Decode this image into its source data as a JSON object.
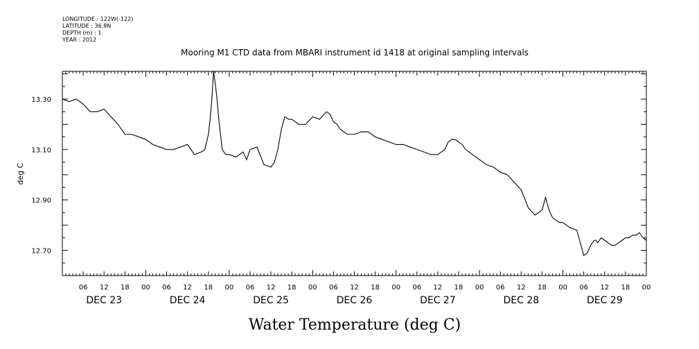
{
  "metadata": [
    "LONGITUDE : 122W(-122)",
    "LATITUDE : 36.8N",
    "DEPTH (m) : 1",
    "YEAR : 2012"
  ],
  "chart_data": {
    "type": "line",
    "title": "Mooring M1 CTD data from MBARI instrument id 1418 at original sampling intervals",
    "xlabel": "Water Temperature (deg C)",
    "ylabel": "deg C",
    "xlim": [
      0,
      168
    ],
    "ylim": [
      12.6,
      13.41
    ],
    "y_ticks": [
      "13.30",
      "13.10",
      "12.90",
      "12.70"
    ],
    "y_tick_values": [
      13.3,
      13.1,
      12.9,
      12.7
    ],
    "hour_tick_labels": [
      "06",
      "12",
      "18",
      "00",
      "06",
      "12",
      "18",
      "00",
      "06",
      "12",
      "18",
      "00",
      "06",
      "12",
      "18",
      "00",
      "06",
      "12",
      "18",
      "00",
      "06",
      "12",
      "18",
      "00",
      "06",
      "12",
      "18",
      "00"
    ],
    "day_labels": [
      "DEC 23",
      "DEC 24",
      "DEC 25",
      "DEC 26",
      "DEC 27",
      "DEC 28",
      "DEC 29"
    ],
    "grid": false,
    "series": [
      {
        "x": [
          0,
          2,
          4,
          6,
          8,
          10,
          12,
          14,
          16,
          18,
          20,
          22,
          24,
          26,
          28,
          30,
          32,
          34,
          36,
          38,
          40,
          41,
          42,
          42.5,
          43,
          43.5,
          44,
          44.5,
          45,
          45.5,
          46,
          47,
          48,
          50,
          52,
          53,
          54,
          56,
          58,
          60,
          61,
          62,
          63,
          64,
          65,
          66,
          67,
          68,
          70,
          72,
          74,
          76,
          77,
          78,
          79,
          80,
          82,
          84,
          86,
          88,
          90,
          92,
          94,
          96,
          98,
          100,
          102,
          104,
          106,
          108,
          110,
          111,
          112,
          113,
          114,
          115,
          116,
          118,
          120,
          122,
          124,
          126,
          128,
          130,
          132,
          134,
          136,
          137,
          138,
          139,
          140,
          141,
          142,
          143,
          144,
          145,
          146,
          148,
          150,
          151,
          152,
          153,
          153.5,
          154,
          155,
          156,
          157,
          158,
          159,
          160,
          161,
          162,
          163,
          164,
          165,
          166,
          167,
          168
        ],
        "values": [
          13.3,
          13.29,
          13.3,
          13.28,
          13.25,
          13.25,
          13.26,
          13.23,
          13.2,
          13.16,
          13.16,
          13.15,
          13.14,
          13.12,
          13.11,
          13.1,
          13.1,
          13.11,
          13.12,
          13.08,
          13.09,
          13.1,
          13.16,
          13.22,
          13.3,
          13.41,
          13.36,
          13.3,
          13.22,
          13.16,
          13.1,
          13.08,
          13.08,
          13.07,
          13.09,
          13.06,
          13.1,
          13.11,
          13.04,
          13.03,
          13.05,
          13.1,
          13.18,
          13.23,
          13.22,
          13.22,
          13.21,
          13.2,
          13.2,
          13.23,
          13.22,
          13.25,
          13.24,
          13.21,
          13.2,
          13.18,
          13.16,
          13.16,
          13.17,
          13.17,
          13.15,
          13.14,
          13.13,
          13.12,
          13.12,
          13.11,
          13.1,
          13.09,
          13.08,
          13.08,
          13.1,
          13.13,
          13.14,
          13.14,
          13.13,
          13.12,
          13.1,
          13.08,
          13.06,
          13.04,
          13.03,
          13.01,
          13.0,
          12.97,
          12.94,
          12.87,
          12.84,
          12.85,
          12.86,
          12.91,
          12.86,
          12.83,
          12.82,
          12.81,
          12.81,
          12.8,
          12.79,
          12.78,
          12.68,
          12.69,
          12.72,
          12.74,
          12.74,
          12.73,
          12.75,
          12.74,
          12.73,
          12.72,
          12.72,
          12.73,
          12.74,
          12.75,
          12.75,
          12.76,
          12.76,
          12.77,
          12.75,
          12.74
        ]
      }
    ]
  }
}
